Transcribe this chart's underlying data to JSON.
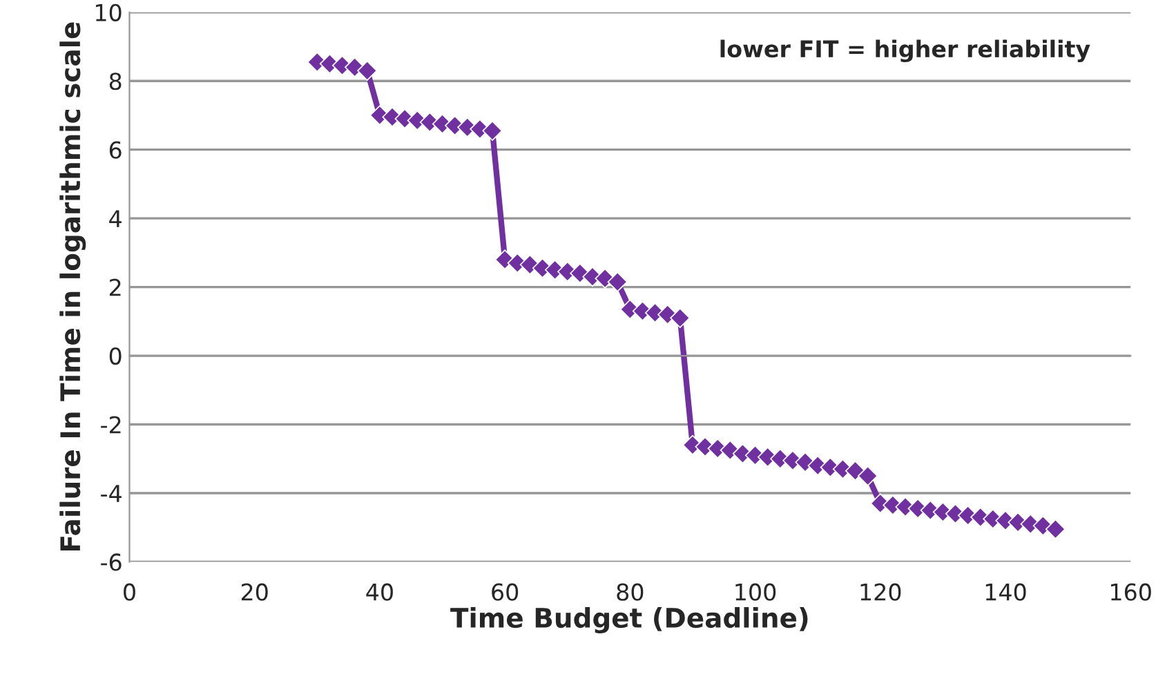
{
  "chart_data": {
    "type": "line",
    "xlabel": "Time Budget (Deadline)",
    "ylabel": "Failure In Time in logarithmic scale",
    "annotations": [
      "lower FIT = higher reliability"
    ],
    "x": [
      30,
      32,
      34,
      36,
      38,
      40,
      42,
      44,
      46,
      48,
      50,
      52,
      54,
      56,
      58,
      60,
      62,
      64,
      66,
      68,
      70,
      72,
      74,
      76,
      78,
      80,
      82,
      84,
      86,
      88,
      90,
      92,
      94,
      96,
      98,
      100,
      102,
      104,
      106,
      108,
      110,
      112,
      114,
      116,
      118,
      120,
      122,
      124,
      126,
      128,
      130,
      132,
      134,
      136,
      138,
      140,
      142,
      144,
      146,
      148
    ],
    "series": [
      {
        "color": "#7030a0",
        "values": [
          8.55,
          8.5,
          8.45,
          8.4,
          8.3,
          7.0,
          6.95,
          6.9,
          6.85,
          6.8,
          6.75,
          6.7,
          6.65,
          6.6,
          6.55,
          2.8,
          2.7,
          2.65,
          2.55,
          2.5,
          2.45,
          2.4,
          2.3,
          2.25,
          2.15,
          1.35,
          1.3,
          1.25,
          1.2,
          1.1,
          -2.6,
          -2.65,
          -2.7,
          -2.75,
          -2.85,
          -2.9,
          -2.95,
          -3.0,
          -3.05,
          -3.1,
          -3.2,
          -3.25,
          -3.3,
          -3.35,
          -3.5,
          -4.3,
          -4.35,
          -4.4,
          -4.45,
          -4.5,
          -4.55,
          -4.6,
          -4.65,
          -4.7,
          -4.75,
          -4.8,
          -4.85,
          -4.9,
          -4.95,
          -5.05
        ]
      }
    ],
    "xlim": [
      0,
      160
    ],
    "xticks": [
      0,
      20,
      40,
      60,
      80,
      100,
      120,
      140,
      160
    ],
    "ylim": [
      -6,
      10
    ],
    "yticks": [
      -6,
      -4,
      -2,
      0,
      2,
      4,
      6,
      8,
      10
    ],
    "grid": "y",
    "marker": "diamond",
    "line_style": "solid",
    "legend": false
  }
}
